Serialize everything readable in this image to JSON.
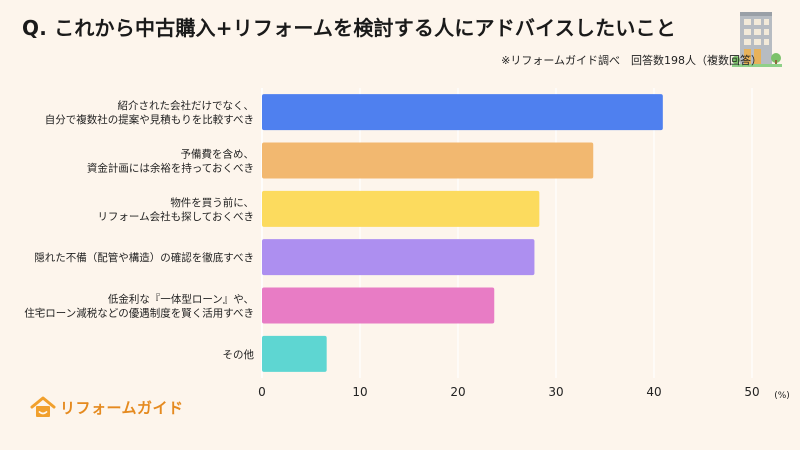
{
  "title": "Q. これから中古購入+リフォームを検討する人にアドバイスしたいこと",
  "subtitle": "※リフォームガイド調べ　回答数198人（複数回答）",
  "logo_text": "リフォームガイド",
  "chart_data": {
    "type": "bar",
    "orientation": "horizontal",
    "categories": [
      [
        "紹介された会社だけでなく、",
        "自分で複数社の提案や見積もりを比較すべき"
      ],
      [
        "予備費を含め、",
        "資金計画には余裕を持っておくべき"
      ],
      [
        "物件を買う前に、",
        "リフォーム会社も探しておくべき"
      ],
      [
        "隠れた不備（配管や構造）の確認を徹底すべき"
      ],
      [
        "低金利な『一体型ローン』や、",
        "住宅ローン減税などの優遇制度を賢く活用すべき"
      ],
      [
        "その他"
      ]
    ],
    "values": [
      40.9,
      33.8,
      28.3,
      27.8,
      23.7,
      6.6
    ],
    "colors": [
      "#4f80ef",
      "#f2b870",
      "#fcdb5e",
      "#ad8ff0",
      "#e87cc5",
      "#5ed6d2"
    ],
    "xlim": [
      0,
      50
    ],
    "xticks": [
      0,
      10,
      20,
      30,
      40,
      50
    ],
    "unit": "(%)",
    "grid": true
  }
}
